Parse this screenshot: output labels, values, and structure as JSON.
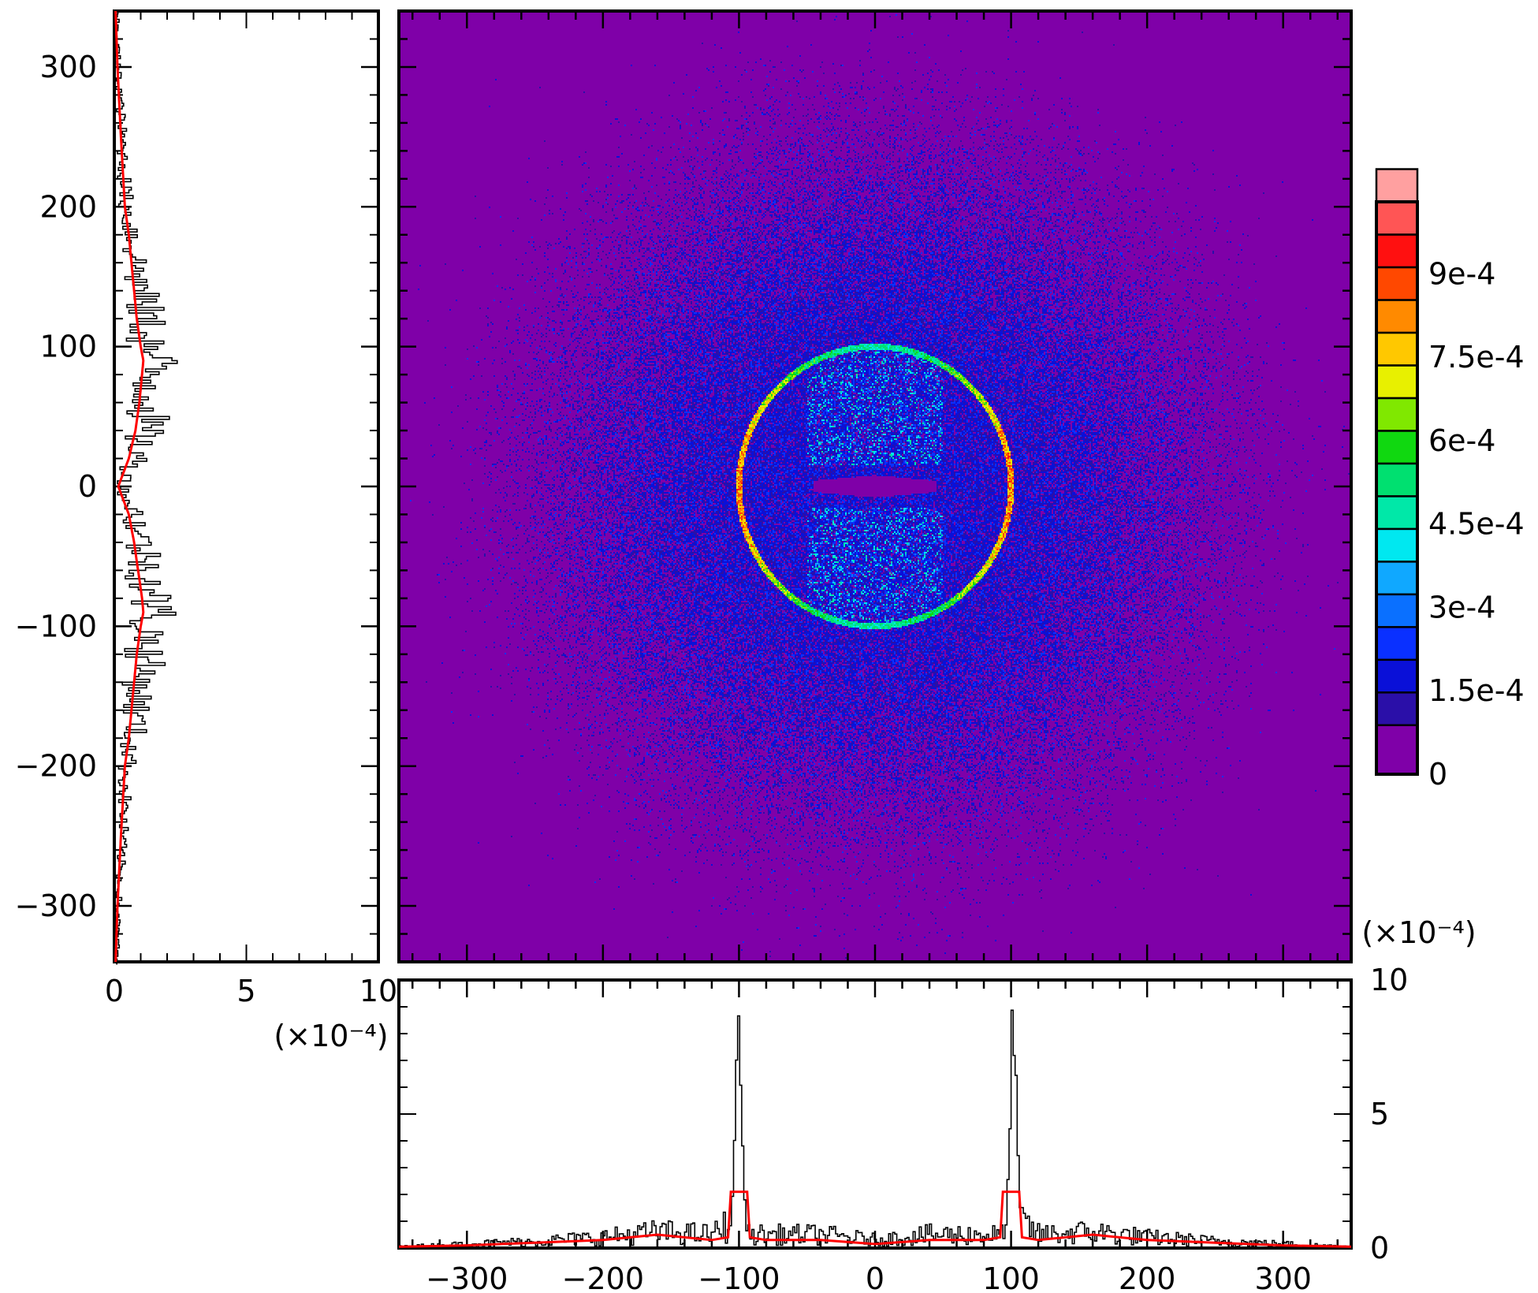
{
  "chart_data": [
    {
      "type": "heatmap",
      "name": "main-2d-map",
      "xlim": [
        -350,
        350
      ],
      "ylim": [
        -340,
        340
      ],
      "x_ticks": [
        -300,
        -200,
        -100,
        0,
        100,
        200,
        300
      ],
      "y_ticks": [
        -300,
        -200,
        -100,
        0,
        100,
        200,
        300
      ],
      "background_color": "#7f00a8",
      "features": {
        "ring": {
          "center": [
            0,
            0
          ],
          "radius": 100,
          "peak_value": 0.00085
        },
        "diffuse_halo": {
          "center": [
            0,
            0
          ],
          "radius": 220,
          "level": 0.00012
        },
        "central_void": {
          "center": [
            0,
            0
          ],
          "half_width": 45,
          "half_height": 8
        }
      },
      "colorbar": {
        "min": 0,
        "max": 0.001,
        "tick_labels": [
          "0",
          "1.5e-4",
          "3e-4",
          "4.5e-4",
          "6e-4",
          "7.5e-4",
          "9e-4"
        ],
        "tick_values": [
          0,
          0.00015,
          0.0003,
          0.00045,
          0.0006,
          0.00075,
          0.0009
        ],
        "colors": [
          "#7f00a8",
          "#2a0fa8",
          "#0a10d8",
          "#0a30ff",
          "#0a70ff",
          "#10a8ff",
          "#00e8f0",
          "#00e8a8",
          "#00e070",
          "#10d810",
          "#80e800",
          "#e8f000",
          "#ffc800",
          "#ff8a00",
          "#ff4800",
          "#ff1010",
          "#ff5555",
          "#ffa0a0"
        ]
      }
    },
    {
      "type": "line",
      "name": "y-projection",
      "orientation": "vertical",
      "value_axis": {
        "lim": [
          0,
          10
        ],
        "ticks": [
          0,
          5,
          10
        ],
        "multiplier_label": "(×10⁻⁴)"
      },
      "position_axis": {
        "lim": [
          -340,
          340
        ],
        "ticks": [
          -300,
          -200,
          -100,
          0,
          100,
          200,
          300
        ]
      },
      "series": [
        {
          "color": "#000000",
          "style": "noisy-histogram",
          "position": [
            -340,
            -300,
            -250,
            -200,
            -180,
            -150,
            -120,
            -100,
            -90,
            -80,
            -60,
            -40,
            -20,
            0,
            20,
            40,
            60,
            80,
            90,
            100,
            120,
            150,
            180,
            200,
            250,
            300,
            340
          ],
          "value": [
            0.1,
            0.15,
            0.3,
            0.45,
            0.7,
            0.9,
            1.2,
            1.3,
            1.5,
            1.4,
            1.3,
            1.0,
            0.8,
            0.3,
            0.8,
            1.1,
            1.4,
            1.4,
            1.5,
            1.3,
            1.2,
            0.9,
            0.7,
            0.45,
            0.3,
            0.15,
            0.1
          ]
        },
        {
          "color": "#ff0000",
          "style": "smoothed",
          "position": [
            -340,
            -300,
            -250,
            -200,
            -180,
            -150,
            -120,
            -100,
            -90,
            -80,
            -60,
            -40,
            -20,
            0,
            20,
            40,
            60,
            80,
            90,
            100,
            120,
            150,
            180,
            200,
            250,
            300,
            340
          ],
          "value": [
            0.05,
            0.12,
            0.25,
            0.4,
            0.55,
            0.7,
            0.85,
            1.0,
            1.1,
            1.05,
            0.9,
            0.75,
            0.55,
            0.15,
            0.55,
            0.8,
            0.95,
            1.05,
            1.1,
            1.0,
            0.85,
            0.7,
            0.55,
            0.4,
            0.25,
            0.12,
            0.05
          ]
        }
      ]
    },
    {
      "type": "line",
      "name": "x-projection",
      "value_axis": {
        "lim": [
          0,
          10
        ],
        "ticks": [
          0,
          5,
          10
        ],
        "multiplier_label": "(×10⁻⁴)"
      },
      "position_axis": {
        "lim": [
          -350,
          350
        ],
        "ticks": [
          -300,
          -200,
          -100,
          0,
          100,
          200,
          300
        ]
      },
      "series": [
        {
          "color": "#000000",
          "style": "noisy-histogram",
          "x": [
            -350,
            -300,
            -250,
            -200,
            -160,
            -120,
            -106,
            -104,
            -102,
            -100,
            -98,
            -96,
            -94,
            -80,
            -40,
            0,
            40,
            80,
            94,
            96,
            98,
            100,
            102,
            104,
            106,
            120,
            160,
            200,
            250,
            300,
            350
          ],
          "y": [
            0.05,
            0.15,
            0.25,
            0.4,
            0.6,
            0.5,
            1.0,
            4.5,
            8.8,
            7.8,
            4.0,
            1.0,
            0.5,
            0.5,
            0.5,
            0.3,
            0.5,
            0.5,
            0.5,
            1.0,
            4.0,
            8.8,
            7.8,
            4.5,
            1.0,
            0.5,
            0.6,
            0.4,
            0.25,
            0.15,
            0.05
          ]
        },
        {
          "color": "#ff0000",
          "style": "smoothed",
          "x": [
            -350,
            -300,
            -250,
            -200,
            -160,
            -120,
            -108,
            -106,
            -102,
            -98,
            -94,
            -92,
            -80,
            -40,
            0,
            40,
            80,
            92,
            94,
            98,
            102,
            106,
            108,
            120,
            160,
            200,
            250,
            300,
            350
          ],
          "y": [
            0.05,
            0.1,
            0.2,
            0.3,
            0.5,
            0.3,
            0.4,
            2.1,
            2.1,
            2.1,
            2.1,
            0.4,
            0.3,
            0.3,
            0.15,
            0.3,
            0.3,
            0.4,
            2.1,
            2.1,
            2.1,
            2.1,
            0.4,
            0.3,
            0.5,
            0.3,
            0.2,
            0.1,
            0.05
          ]
        }
      ]
    }
  ]
}
